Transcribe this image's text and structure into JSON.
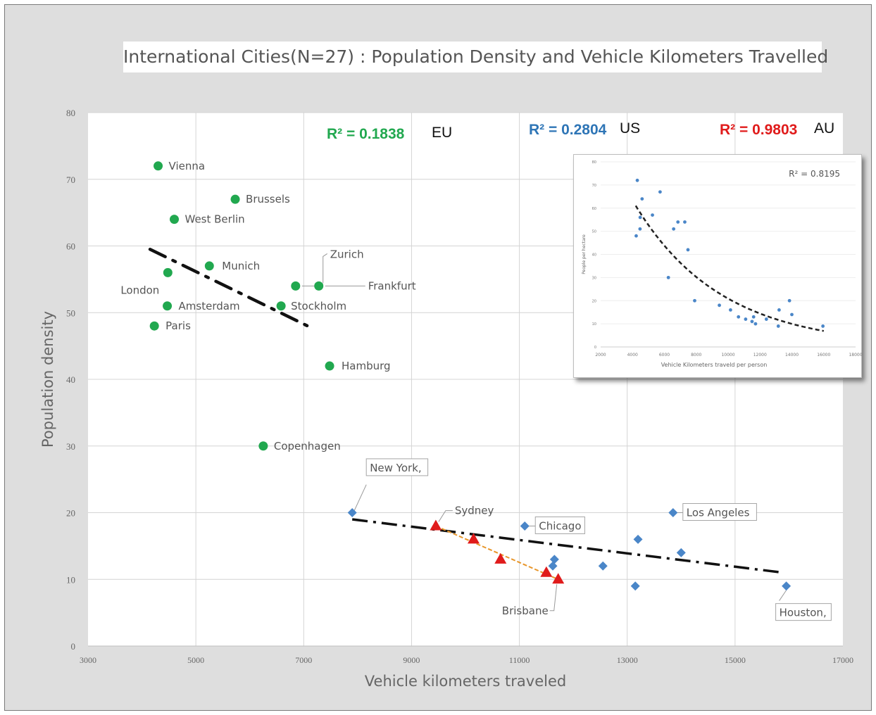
{
  "chart_data": [
    {
      "type": "scatter",
      "title": "International Cities(N=27) : Population Density and Vehicle Kilometers Travelled",
      "xlabel": "Vehicle kilometers traveled",
      "ylabel": "Population density",
      "xlim": [
        3000,
        17000
      ],
      "ylim": [
        0,
        80
      ],
      "x_ticks": [
        "3000",
        "5000",
        "7000",
        "9000",
        "11000",
        "13000",
        "15000",
        "17000"
      ],
      "y_ticks": [
        "0",
        "10",
        "20",
        "30",
        "40",
        "50",
        "60",
        "70",
        "80"
      ],
      "grid": true,
      "colors": {
        "EU": "#21a84f",
        "US": "#4a86c8",
        "AU": "#e01b1b",
        "trend": "#111111",
        "au_trend": "#e8962a"
      },
      "r2_labels": [
        {
          "value": "R² = 0.1838",
          "group": "EU",
          "color": "#21a84f"
        },
        {
          "value": "R² = 0.2804",
          "group": "US",
          "color": "#2e75b6"
        },
        {
          "value": "R² = 0.9803",
          "group": "AU",
          "color": "#e01b1b"
        }
      ],
      "series": [
        {
          "name": "EU",
          "marker": "circle",
          "points": [
            {
              "label": "Vienna",
              "x": 4300,
              "y": 72
            },
            {
              "label": "Brussels",
              "x": 5730,
              "y": 67
            },
            {
              "label": "West Berlin",
              "x": 4600,
              "y": 64
            },
            {
              "label": "Munich",
              "x": 5250,
              "y": 57
            },
            {
              "label": "London",
              "x": 4480,
              "y": 56
            },
            {
              "label": "Zurich",
              "x": 6850,
              "y": 54
            },
            {
              "label": "Frankfurt",
              "x": 7280,
              "y": 54
            },
            {
              "label": "Amsterdam",
              "x": 4470,
              "y": 51
            },
            {
              "label": "Stockholm",
              "x": 6580,
              "y": 51
            },
            {
              "label": "Paris",
              "x": 4230,
              "y": 48
            },
            {
              "label": "Hamburg",
              "x": 7480,
              "y": 42
            },
            {
              "label": "Copenhagen",
              "x": 6250,
              "y": 30
            }
          ]
        },
        {
          "name": "US",
          "marker": "diamond",
          "points": [
            {
              "label": "New York,",
              "x": 7900,
              "y": 20
            },
            {
              "label": "Chicago",
              "x": 11100,
              "y": 18
            },
            {
              "label": "Los Angeles",
              "x": 13850,
              "y": 20
            },
            {
              "label": "",
              "x": 13200,
              "y": 16
            },
            {
              "label": "",
              "x": 14000,
              "y": 14
            },
            {
              "label": "",
              "x": 11650,
              "y": 13
            },
            {
              "label": "",
              "x": 11620,
              "y": 12
            },
            {
              "label": "",
              "x": 12550,
              "y": 12
            },
            {
              "label": "",
              "x": 13150,
              "y": 9
            },
            {
              "label": "Houston,",
              "x": 15950,
              "y": 9
            }
          ]
        },
        {
          "name": "AU",
          "marker": "triangle",
          "points": [
            {
              "label": "Sydney",
              "x": 9450,
              "y": 18
            },
            {
              "label": "",
              "x": 10150,
              "y": 16
            },
            {
              "label": "",
              "x": 10650,
              "y": 13
            },
            {
              "label": "",
              "x": 11500,
              "y": 11
            },
            {
              "label": "Brisbane",
              "x": 11720,
              "y": 10
            }
          ]
        }
      ],
      "trendlines": [
        {
          "group": "EU",
          "x": [
            4150,
            7200
          ],
          "y": [
            59.5,
            47.5
          ]
        },
        {
          "group": "US",
          "x": [
            7900,
            15900
          ],
          "y": [
            19,
            11
          ]
        },
        {
          "group": "AU",
          "x": [
            9450,
            11720
          ],
          "y": [
            18,
            10
          ]
        }
      ]
    },
    {
      "type": "scatter",
      "r2_label": "R² = 0.8195",
      "xlabel": "Vehicle Kilometers traveld per person",
      "ylabel": "People per hectare",
      "xlim": [
        2000,
        18000
      ],
      "ylim": [
        0,
        80
      ],
      "x_ticks": [
        "2000",
        "4000",
        "6000",
        "8000",
        "10000",
        "12000",
        "14000",
        "16000",
        "18000"
      ],
      "y_ticks": [
        "0",
        "10",
        "20",
        "30",
        "40",
        "50",
        "60",
        "70",
        "80"
      ],
      "trend": "exponential",
      "color": "#4a86c8",
      "points": [
        {
          "x": 4300,
          "y": 72
        },
        {
          "x": 4600,
          "y": 64
        },
        {
          "x": 4480,
          "y": 56
        },
        {
          "x": 4470,
          "y": 51
        },
        {
          "x": 4230,
          "y": 48
        },
        {
          "x": 5250,
          "y": 57
        },
        {
          "x": 5730,
          "y": 67
        },
        {
          "x": 6850,
          "y": 54
        },
        {
          "x": 7280,
          "y": 54
        },
        {
          "x": 6580,
          "y": 51
        },
        {
          "x": 7480,
          "y": 42
        },
        {
          "x": 6250,
          "y": 30
        },
        {
          "x": 7900,
          "y": 20
        },
        {
          "x": 9450,
          "y": 18
        },
        {
          "x": 10150,
          "y": 16
        },
        {
          "x": 10650,
          "y": 13
        },
        {
          "x": 11100,
          "y": 12
        },
        {
          "x": 11500,
          "y": 11
        },
        {
          "x": 11720,
          "y": 10
        },
        {
          "x": 11600,
          "y": 13
        },
        {
          "x": 12400,
          "y": 12
        },
        {
          "x": 13150,
          "y": 9
        },
        {
          "x": 13200,
          "y": 16
        },
        {
          "x": 13850,
          "y": 20
        },
        {
          "x": 14000,
          "y": 14
        },
        {
          "x": 15950,
          "y": 9
        }
      ]
    }
  ]
}
